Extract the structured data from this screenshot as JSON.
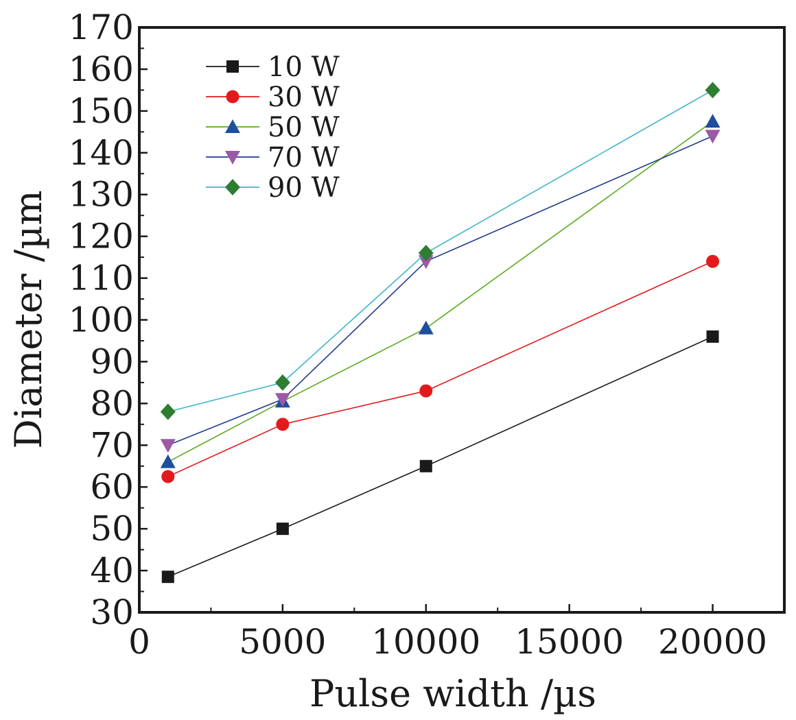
{
  "chart_data": {
    "type": "line",
    "xlabel": "Pulse width /µs",
    "ylabel": "Diameter /µm",
    "xlim": [
      0,
      22500
    ],
    "ylim": [
      30,
      170
    ],
    "xticks": [
      0,
      5000,
      10000,
      15000,
      20000
    ],
    "yticks": [
      30,
      40,
      50,
      60,
      70,
      80,
      90,
      100,
      110,
      120,
      130,
      140,
      150,
      160,
      170
    ],
    "x": [
      1000,
      5000,
      10000,
      20000
    ],
    "legend_position": "top-left",
    "grid": false,
    "series": [
      {
        "name": "10 W",
        "color": "#1a1a1a",
        "marker": "square",
        "values": [
          38.5,
          50,
          65,
          96
        ]
      },
      {
        "name": "30 W",
        "color": "#e31a1c",
        "marker": "circle",
        "values": [
          62.5,
          75,
          83,
          114
        ]
      },
      {
        "name": "50 W",
        "color": "#5aaa1e",
        "marker_color": "#1f4e9e",
        "marker": "triangle-up",
        "values": [
          66,
          80.5,
          98,
          147.5
        ]
      },
      {
        "name": "70 W",
        "color": "#1f3b8f",
        "marker_color": "#9b59a6",
        "marker": "triangle-down",
        "values": [
          70,
          81,
          114,
          144
        ]
      },
      {
        "name": "90 W",
        "color": "#3fb5c9",
        "marker_color": "#2e7d32",
        "marker": "diamond",
        "values": [
          78,
          85,
          116,
          155
        ]
      }
    ]
  }
}
